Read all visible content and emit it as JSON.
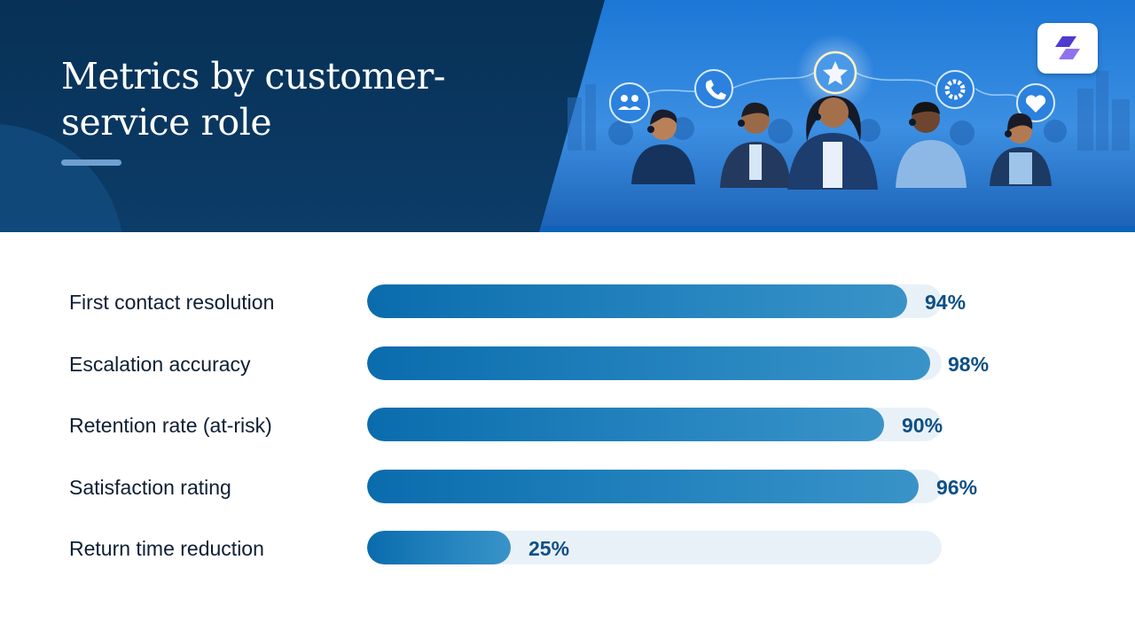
{
  "header": {
    "title": "Metrics by customer-service role"
  },
  "colors": {
    "header_navy": "#0a3a66",
    "bar_fill": "#1f7fbb",
    "bar_track": "#e9f1f8",
    "value_text": "#0d4f86",
    "label_text": "#0e1f33"
  },
  "icons": [
    "people-icon",
    "phone-icon",
    "star-icon",
    "gear-icon",
    "heart-icon",
    "brand-logo-icon"
  ],
  "chart_data": {
    "type": "bar",
    "orientation": "horizontal",
    "categories": [
      "First contact resolution",
      "Escalation accuracy",
      "Retention rate (at-risk)",
      "Satisfaction rating",
      "Return time reduction"
    ],
    "values": [
      94,
      98,
      90,
      96,
      25
    ],
    "value_labels": [
      "94%",
      "98%",
      "90%",
      "96%",
      "25%"
    ],
    "xlim": [
      0,
      100
    ],
    "grid": false,
    "legend": "none"
  }
}
